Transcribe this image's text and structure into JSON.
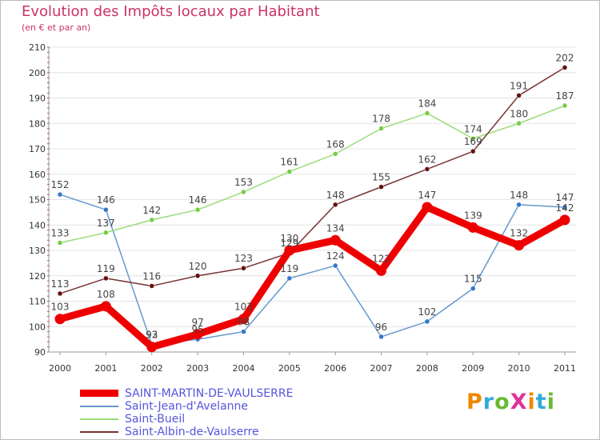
{
  "chart_data": {
    "type": "line",
    "title": "Evolution des Impôts locaux par Habitant",
    "subtitle": "(en € et par an)",
    "xlabel": "",
    "ylabel": "",
    "ylim": [
      90,
      210
    ],
    "yticks": [
      90,
      100,
      110,
      120,
      130,
      140,
      150,
      160,
      170,
      180,
      190,
      200,
      210
    ],
    "x": [
      "2000",
      "2001",
      "2002",
      "2003",
      "2004",
      "2005",
      "2006",
      "2007",
      "2008",
      "2009",
      "2010",
      "2011"
    ],
    "legend_position": "bottom-left",
    "series": [
      {
        "name": "SAINT-MARTIN-DE-VAULSERRE",
        "color": "#ee0000",
        "marker": "#ee0000",
        "thick": true,
        "values": [
          103,
          108,
          92,
          97,
          103,
          130,
          134,
          122,
          147,
          139,
          132,
          142
        ]
      },
      {
        "name": "Saint-Jean-d'Avelanne",
        "color": "#6699cc",
        "marker": "#3377cc",
        "thick": false,
        "values": [
          152,
          146,
          93,
          95,
          98,
          119,
          124,
          96,
          102,
          115,
          148,
          147
        ]
      },
      {
        "name": "Saint-Bueil",
        "color": "#99dd77",
        "marker": "#77cc44",
        "thick": false,
        "values": [
          133,
          137,
          142,
          146,
          153,
          161,
          168,
          178,
          184,
          174,
          180,
          187
        ]
      },
      {
        "name": "Saint-Albin-de-Vaulserre",
        "color": "#773333",
        "marker": "#661111",
        "thick": false,
        "values": [
          113,
          119,
          116,
          120,
          123,
          129,
          148,
          155,
          162,
          169,
          191,
          202
        ]
      }
    ]
  },
  "brand": {
    "text": "ProXiti",
    "letter_colors": [
      "#ee8800",
      "#33aadd",
      "#66bb33",
      "#dd3399",
      "#ee8800",
      "#33aadd",
      "#66bb33"
    ]
  }
}
